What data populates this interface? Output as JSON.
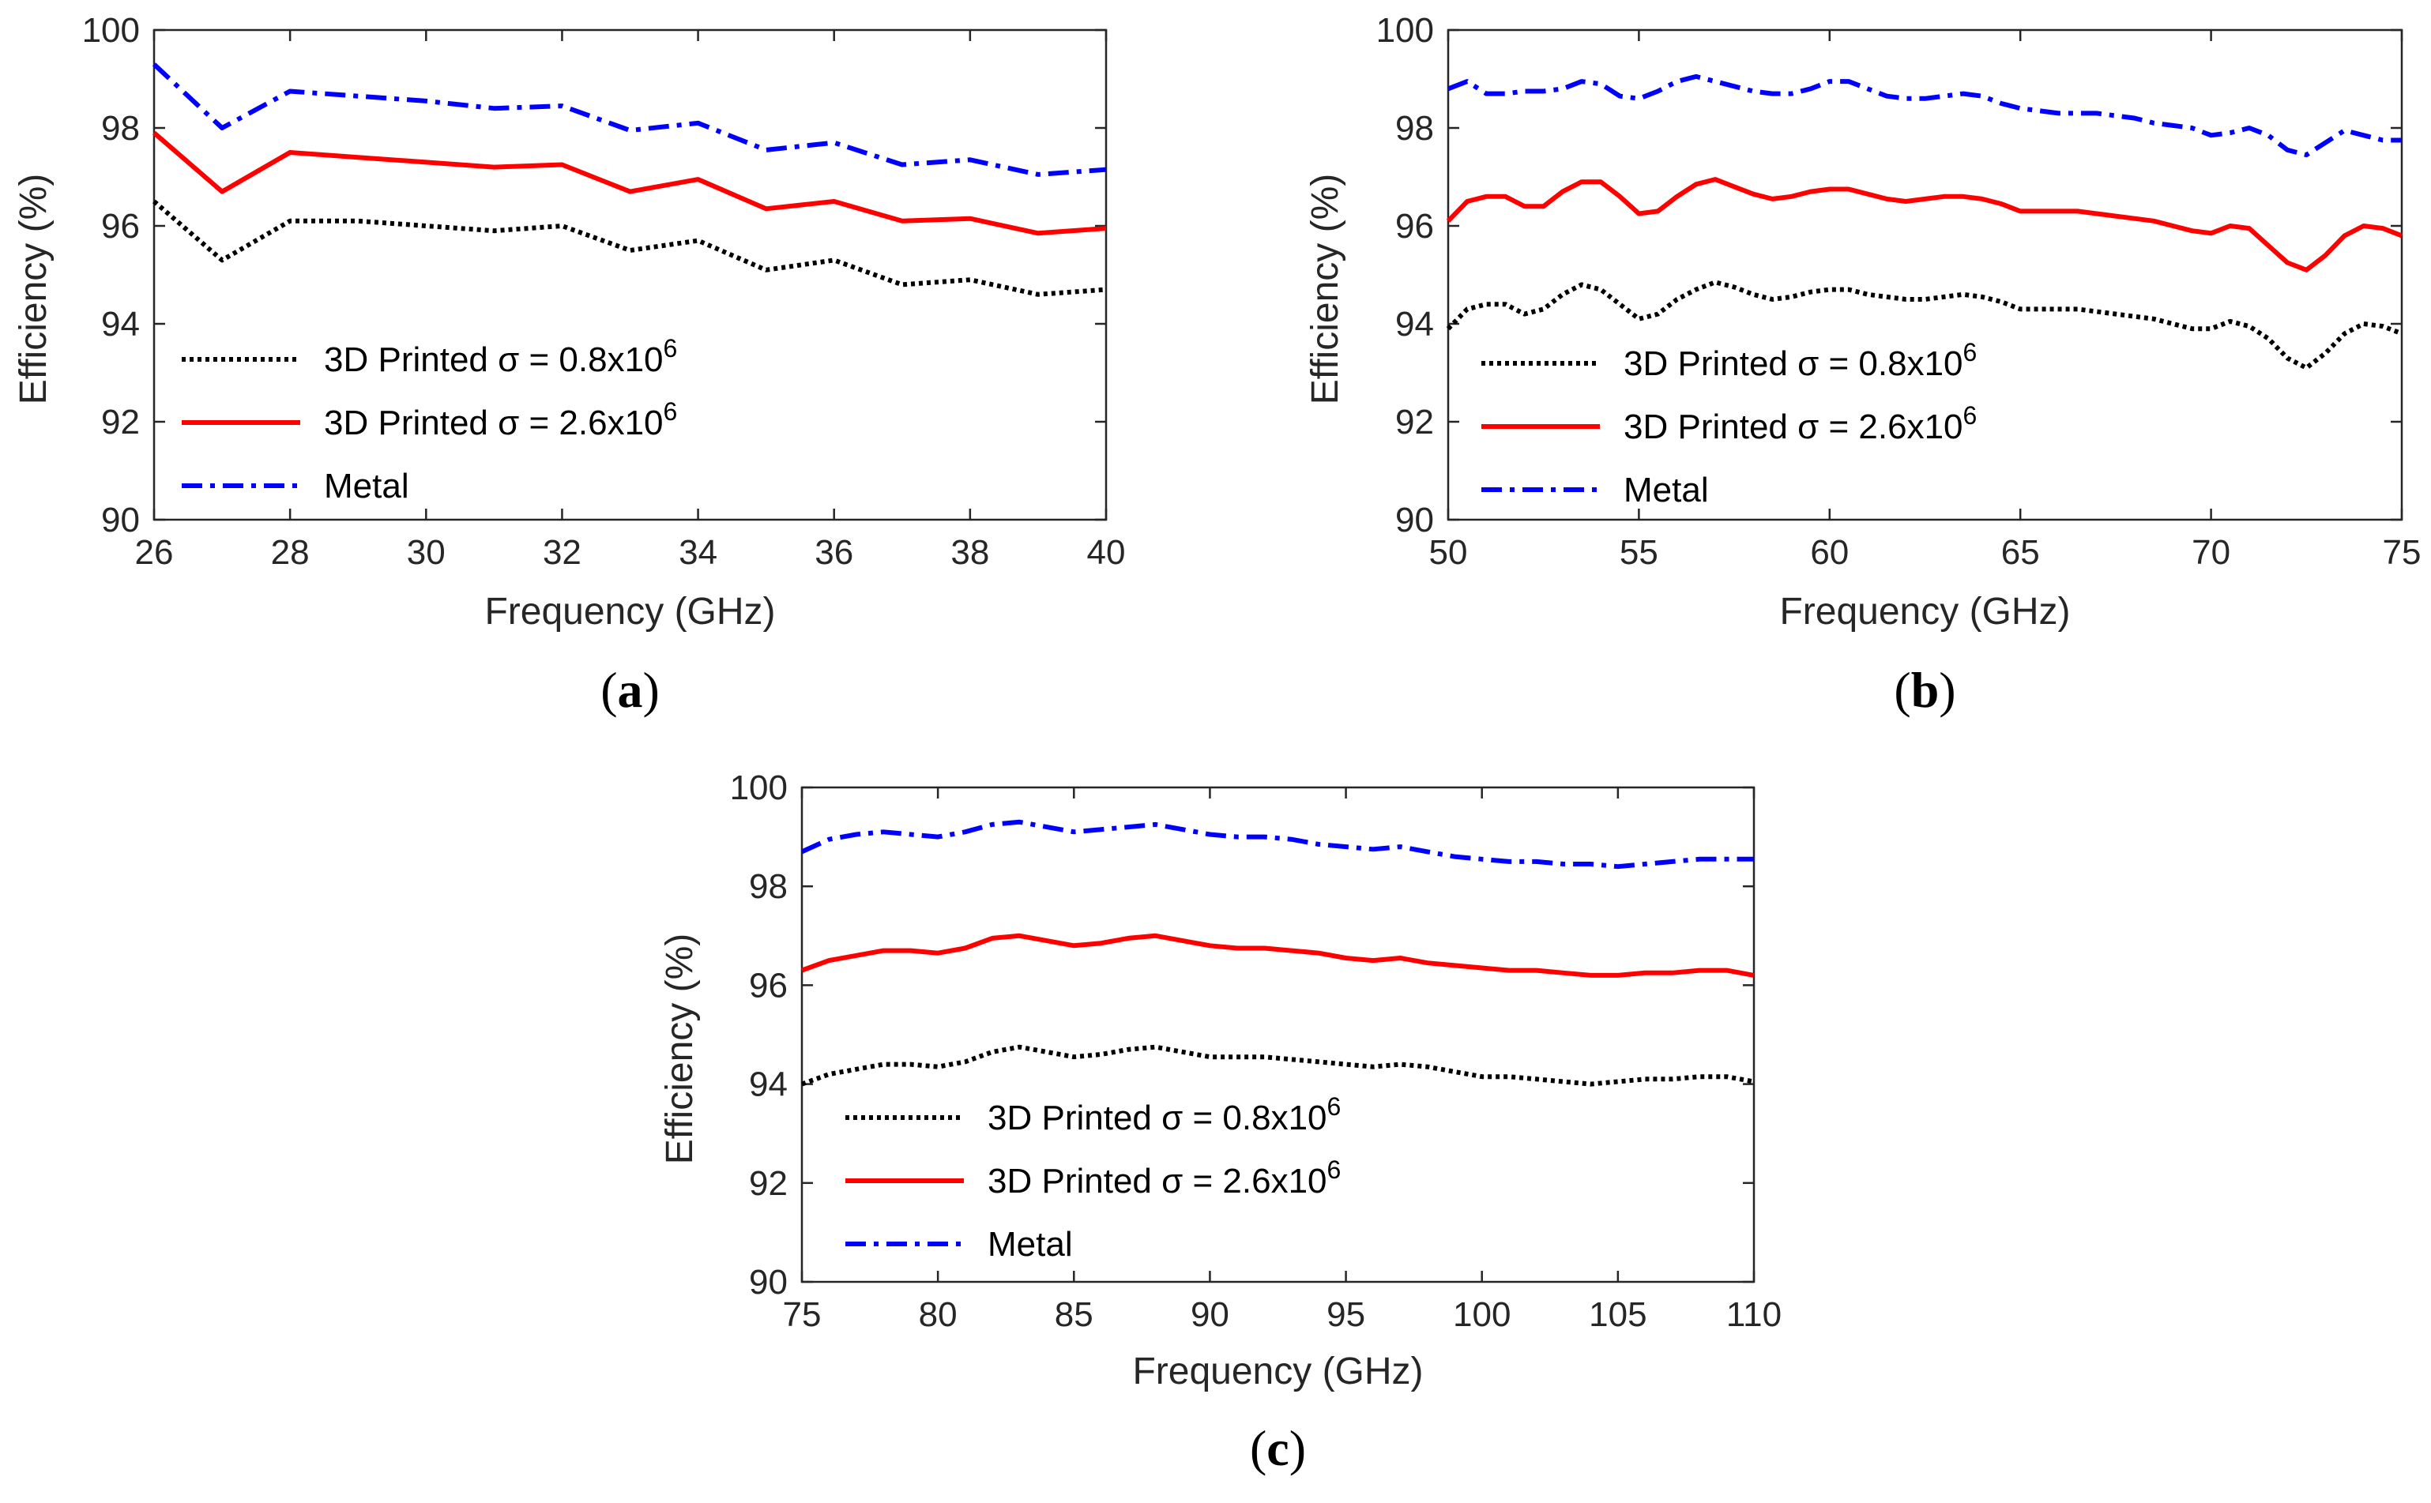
{
  "colors": {
    "printed_low": "#000000",
    "printed_high": "#ff0000",
    "metal": "#0000ff",
    "axis": "#262626"
  },
  "chart_data": [
    {
      "type": "line",
      "panel_label_open": "(",
      "panel_label_letter": "a",
      "panel_label_close": ")",
      "xlabel": "Frequency (GHz)",
      "ylabel": "Efficiency (%)",
      "xlim": [
        26,
        40
      ],
      "ylim": [
        90,
        100
      ],
      "xticks": [
        26,
        28,
        30,
        32,
        34,
        36,
        38,
        40
      ],
      "yticks": [
        90,
        92,
        94,
        96,
        98,
        100
      ],
      "legend_position": "bottom-left",
      "grid": false,
      "series": [
        {
          "name": "3D Printed σ = 0.8x10",
          "name_superscript": "6",
          "style": "dotted",
          "color": "#000000",
          "x": [
            26,
            27,
            28,
            29,
            30,
            31,
            32,
            33,
            34,
            35,
            36,
            37,
            38,
            39,
            40
          ],
          "y": [
            96.5,
            95.3,
            96.1,
            96.1,
            96.0,
            95.9,
            96.0,
            95.5,
            95.7,
            95.1,
            95.3,
            94.8,
            94.9,
            94.6,
            94.7
          ]
        },
        {
          "name": "3D Printed σ = 2.6x10",
          "name_superscript": "6",
          "style": "solid",
          "color": "#ff0000",
          "x": [
            26,
            27,
            28,
            29,
            30,
            31,
            32,
            33,
            34,
            35,
            36,
            37,
            38,
            39,
            40
          ],
          "y": [
            97.9,
            96.7,
            97.5,
            97.4,
            97.3,
            97.2,
            97.25,
            96.7,
            96.95,
            96.35,
            96.5,
            96.1,
            96.15,
            95.85,
            95.95
          ]
        },
        {
          "name": "Metal",
          "style": "dashdot",
          "color": "#0000ff",
          "x": [
            26,
            27,
            28,
            29,
            30,
            31,
            32,
            33,
            34,
            35,
            36,
            37,
            38,
            39,
            40
          ],
          "y": [
            99.3,
            98.0,
            98.75,
            98.65,
            98.55,
            98.4,
            98.45,
            97.95,
            98.1,
            97.55,
            97.7,
            97.25,
            97.35,
            97.05,
            97.15
          ]
        }
      ]
    },
    {
      "type": "line",
      "panel_label_open": "(",
      "panel_label_letter": "b",
      "panel_label_close": ")",
      "xlabel": "Frequency (GHz)",
      "ylabel": "Efficiency (%)",
      "xlim": [
        50,
        75
      ],
      "ylim": [
        90,
        100
      ],
      "xticks": [
        50,
        55,
        60,
        65,
        70,
        75
      ],
      "yticks": [
        90,
        92,
        94,
        96,
        98,
        100
      ],
      "legend_position": "bottom-left",
      "grid": false,
      "series": [
        {
          "name": "3D Printed σ = 0.8x10",
          "name_superscript": "6",
          "style": "dotted",
          "color": "#000000",
          "x": [
            50,
            50.5,
            51,
            51.5,
            52,
            52.5,
            53,
            53.5,
            54,
            54.5,
            55,
            55.5,
            56,
            56.5,
            57,
            57.5,
            58,
            58.5,
            59,
            59.5,
            60,
            60.5,
            61,
            61.5,
            62,
            62.5,
            63,
            63.5,
            64,
            64.5,
            65,
            65.5,
            66,
            66.5,
            67,
            67.5,
            68,
            68.5,
            69,
            69.5,
            70,
            70.5,
            71,
            71.5,
            72,
            72.5,
            73,
            73.5,
            74,
            74.5,
            75
          ],
          "y": [
            93.9,
            94.3,
            94.4,
            94.4,
            94.2,
            94.3,
            94.6,
            94.8,
            94.7,
            94.4,
            94.1,
            94.2,
            94.5,
            94.7,
            94.85,
            94.75,
            94.6,
            94.5,
            94.55,
            94.65,
            94.7,
            94.7,
            94.6,
            94.55,
            94.5,
            94.5,
            94.55,
            94.6,
            94.55,
            94.45,
            94.3,
            94.3,
            94.3,
            94.3,
            94.25,
            94.2,
            94.15,
            94.1,
            94.0,
            93.9,
            93.9,
            94.05,
            93.95,
            93.7,
            93.3,
            93.1,
            93.4,
            93.8,
            94.0,
            93.95,
            93.8
          ]
        },
        {
          "name": "3D Printed σ = 2.6x10",
          "name_superscript": "6",
          "style": "solid",
          "color": "#ff0000",
          "x": [
            50,
            50.5,
            51,
            51.5,
            52,
            52.5,
            53,
            53.5,
            54,
            54.5,
            55,
            55.5,
            56,
            56.5,
            57,
            57.5,
            58,
            58.5,
            59,
            59.5,
            60,
            60.5,
            61,
            61.5,
            62,
            62.5,
            63,
            63.5,
            64,
            64.5,
            65,
            65.5,
            66,
            66.5,
            67,
            67.5,
            68,
            68.5,
            69,
            69.5,
            70,
            70.5,
            71,
            71.5,
            72,
            72.5,
            73,
            73.5,
            74,
            74.5,
            75
          ],
          "y": [
            96.1,
            96.5,
            96.6,
            96.6,
            96.4,
            96.4,
            96.7,
            96.9,
            96.9,
            96.6,
            96.25,
            96.3,
            96.6,
            96.85,
            96.95,
            96.8,
            96.65,
            96.55,
            96.6,
            96.7,
            96.75,
            96.75,
            96.65,
            96.55,
            96.5,
            96.55,
            96.6,
            96.6,
            96.55,
            96.45,
            96.3,
            96.3,
            96.3,
            96.3,
            96.25,
            96.2,
            96.15,
            96.1,
            96.0,
            95.9,
            95.85,
            96.0,
            95.95,
            95.6,
            95.25,
            95.1,
            95.4,
            95.8,
            96.0,
            95.95,
            95.8
          ]
        },
        {
          "name": "Metal",
          "style": "dashdot",
          "color": "#0000ff",
          "x": [
            50,
            50.5,
            51,
            51.5,
            52,
            52.5,
            53,
            53.5,
            54,
            54.5,
            55,
            55.5,
            56,
            56.5,
            57,
            57.5,
            58,
            58.5,
            59,
            59.5,
            60,
            60.5,
            61,
            61.5,
            62,
            62.5,
            63,
            63.5,
            64,
            64.5,
            65,
            65.5,
            66,
            66.5,
            67,
            67.5,
            68,
            68.5,
            69,
            69.5,
            70,
            70.5,
            71,
            71.5,
            72,
            72.5,
            73,
            73.5,
            74,
            74.5,
            75
          ],
          "y": [
            98.8,
            98.95,
            98.7,
            98.7,
            98.75,
            98.75,
            98.8,
            98.95,
            98.9,
            98.65,
            98.6,
            98.75,
            98.95,
            99.05,
            98.95,
            98.85,
            98.75,
            98.7,
            98.7,
            98.8,
            98.95,
            98.95,
            98.8,
            98.65,
            98.6,
            98.6,
            98.65,
            98.7,
            98.65,
            98.5,
            98.4,
            98.35,
            98.3,
            98.3,
            98.3,
            98.25,
            98.2,
            98.1,
            98.05,
            98.0,
            97.85,
            97.9,
            98.0,
            97.85,
            97.55,
            97.45,
            97.7,
            97.95,
            97.85,
            97.75,
            97.75
          ]
        }
      ]
    },
    {
      "type": "line",
      "panel_label_open": "(",
      "panel_label_letter": "c",
      "panel_label_close": ")",
      "xlabel": "Frequency (GHz)",
      "ylabel": "Efficiency (%)",
      "xlim": [
        75,
        110
      ],
      "ylim": [
        90,
        100
      ],
      "xticks": [
        75,
        80,
        85,
        90,
        95,
        100,
        105,
        110
      ],
      "yticks": [
        90,
        92,
        94,
        96,
        98,
        100
      ],
      "legend_position": "bottom-center",
      "grid": false,
      "series": [
        {
          "name": "3D Printed σ = 0.8x10",
          "name_superscript": "6",
          "style": "dotted",
          "color": "#000000",
          "x": [
            75,
            76,
            77,
            78,
            79,
            80,
            81,
            82,
            83,
            84,
            85,
            86,
            87,
            88,
            89,
            90,
            91,
            92,
            93,
            94,
            95,
            96,
            97,
            98,
            99,
            100,
            101,
            102,
            103,
            104,
            105,
            106,
            107,
            108,
            109,
            110
          ],
          "y": [
            94.0,
            94.2,
            94.3,
            94.4,
            94.4,
            94.35,
            94.45,
            94.65,
            94.75,
            94.65,
            94.55,
            94.6,
            94.7,
            94.75,
            94.65,
            94.55,
            94.55,
            94.55,
            94.5,
            94.45,
            94.4,
            94.35,
            94.4,
            94.35,
            94.25,
            94.15,
            94.15,
            94.1,
            94.05,
            94.0,
            94.05,
            94.1,
            94.1,
            94.15,
            94.15,
            94.05
          ]
        },
        {
          "name": "3D Printed σ = 2.6x10",
          "name_superscript": "6",
          "style": "solid",
          "color": "#ff0000",
          "x": [
            75,
            76,
            77,
            78,
            79,
            80,
            81,
            82,
            83,
            84,
            85,
            86,
            87,
            88,
            89,
            90,
            91,
            92,
            93,
            94,
            95,
            96,
            97,
            98,
            99,
            100,
            101,
            102,
            103,
            104,
            105,
            106,
            107,
            108,
            109,
            110
          ],
          "y": [
            96.3,
            96.5,
            96.6,
            96.7,
            96.7,
            96.65,
            96.75,
            96.95,
            97.0,
            96.9,
            96.8,
            96.85,
            96.95,
            97.0,
            96.9,
            96.8,
            96.75,
            96.75,
            96.7,
            96.65,
            96.55,
            96.5,
            96.55,
            96.45,
            96.4,
            96.35,
            96.3,
            96.3,
            96.25,
            96.2,
            96.2,
            96.25,
            96.25,
            96.3,
            96.3,
            96.2
          ]
        },
        {
          "name": "Metal",
          "style": "dashdot",
          "color": "#0000ff",
          "x": [
            75,
            76,
            77,
            78,
            79,
            80,
            81,
            82,
            83,
            84,
            85,
            86,
            87,
            88,
            89,
            90,
            91,
            92,
            93,
            94,
            95,
            96,
            97,
            98,
            99,
            100,
            101,
            102,
            103,
            104,
            105,
            106,
            107,
            108,
            109,
            110
          ],
          "y": [
            98.7,
            98.95,
            99.05,
            99.1,
            99.05,
            99.0,
            99.1,
            99.25,
            99.3,
            99.2,
            99.1,
            99.15,
            99.2,
            99.25,
            99.15,
            99.05,
            99.0,
            99.0,
            98.95,
            98.85,
            98.8,
            98.75,
            98.8,
            98.7,
            98.6,
            98.55,
            98.5,
            98.5,
            98.45,
            98.45,
            98.4,
            98.45,
            98.5,
            98.55,
            98.55,
            98.55
          ]
        }
      ]
    }
  ]
}
